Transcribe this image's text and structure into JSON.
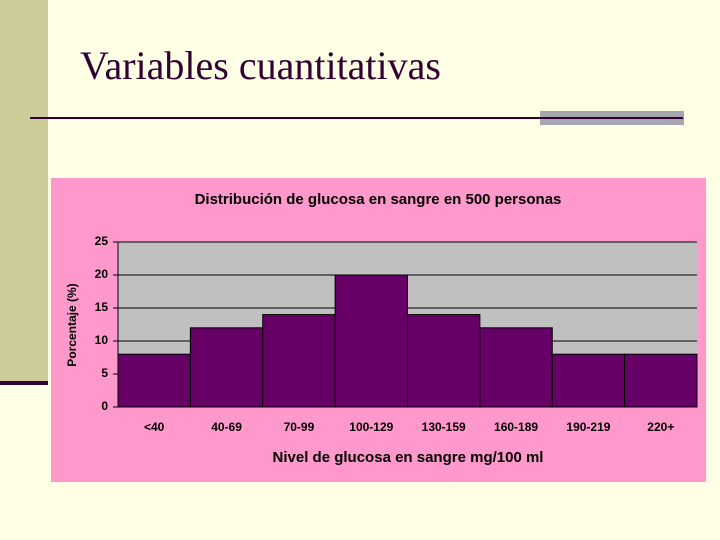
{
  "slide": {
    "title": "Variables cuantitativas"
  },
  "chart_data": {
    "type": "bar",
    "title": "Distribución de glucosa en sangre en 500 personas",
    "x_label": "Nivel de glucosa en sangre mg/100 ml",
    "y_label": "Porcentaje (%)",
    "categories": [
      "<40",
      "40-69",
      "70-99",
      "100-129",
      "130-159",
      "160-189",
      "190-219",
      "220+"
    ],
    "values": [
      8,
      12,
      14,
      20,
      14,
      12,
      8,
      8
    ],
    "color": "#660066",
    "ylim": [
      0,
      25
    ],
    "yticks": [
      0,
      5,
      10,
      15,
      20,
      25
    ],
    "grid": true
  }
}
